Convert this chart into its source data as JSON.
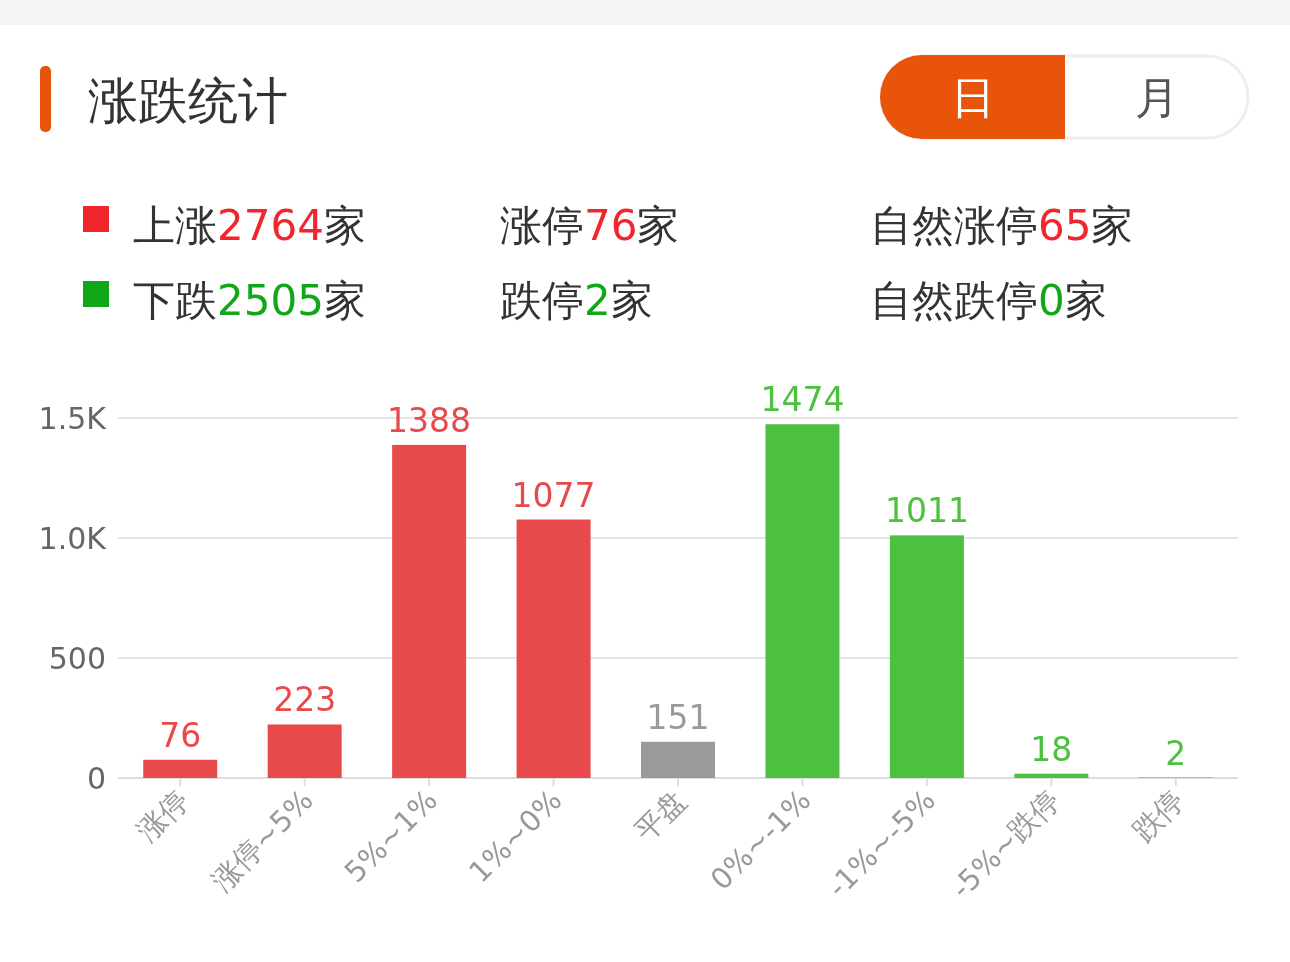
{
  "chart_data": {
    "type": "bar",
    "title": "涨跌统计",
    "annotations": [
      "日",
      "月",
      "上涨2764家",
      "涨停76家",
      "自然涨停65家",
      "下跌2505家",
      "跌停2家",
      "自然跌停0家"
    ],
    "categories": [
      "涨停",
      "涨停~5%",
      "5%~1%",
      "1%~0%",
      "平盘",
      "0%~-1%",
      "-1%~-5%",
      "-5%~跌停",
      "跌停"
    ],
    "values": [
      76,
      223,
      1388,
      1077,
      151,
      1474,
      1011,
      18,
      2
    ],
    "colors": [
      "#e8494a",
      "#e8494a",
      "#e8494a",
      "#e8494a",
      "#9a9a9a",
      "#4cc13f",
      "#4cc13f",
      "#4cc13f",
      "#4cc13f"
    ],
    "ylim": [
      0,
      1500
    ],
    "yticks": [
      0,
      500,
      {
        "value": 1000,
        "label": "1.0K"
      },
      {
        "value": 1500,
        "label": "1.5K"
      }
    ],
    "grid": "y",
    "data_labels": true
  }
}
